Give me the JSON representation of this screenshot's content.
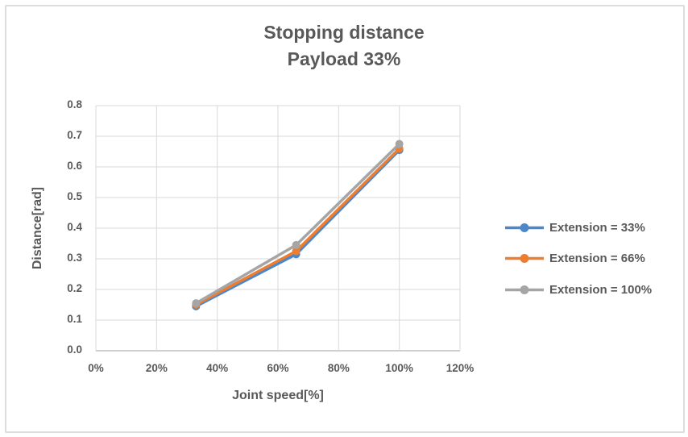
{
  "figure": {
    "title_line1": "Stopping distance",
    "title_line2": "Payload 33%"
  },
  "chart_data": {
    "type": "line",
    "title": "Stopping distance Payload 33%",
    "x": [
      33,
      66,
      100
    ],
    "series": [
      {
        "name": "Extension = 33%",
        "color": "#4B87C9",
        "values": [
          0.145,
          0.315,
          0.655
        ]
      },
      {
        "name": "Extension = 66%",
        "color": "#ED7D31",
        "values": [
          0.15,
          0.325,
          0.66
        ]
      },
      {
        "name": "Extension = 100%",
        "color": "#A5A5A5",
        "values": [
          0.155,
          0.345,
          0.675
        ]
      }
    ],
    "xlabel": "Joint speed[%]",
    "ylabel": "Distance[rad]",
    "xlim": [
      0,
      120
    ],
    "ylim": [
      0,
      0.8
    ],
    "x_ticks": [
      "0%",
      "20%",
      "40%",
      "60%",
      "80%",
      "100%",
      "120%"
    ],
    "y_ticks": [
      "0.0",
      "0.1",
      "0.2",
      "0.3",
      "0.4",
      "0.5",
      "0.6",
      "0.7",
      "0.8"
    ],
    "grid": true,
    "legend_position": "right",
    "marker": "circle"
  },
  "colors": {
    "text": "#595959",
    "gridline": "#D9D9D9",
    "axis_line": "#BFBFBF",
    "figure_border": "#DCDCDC",
    "background": "#FFFFFF"
  }
}
